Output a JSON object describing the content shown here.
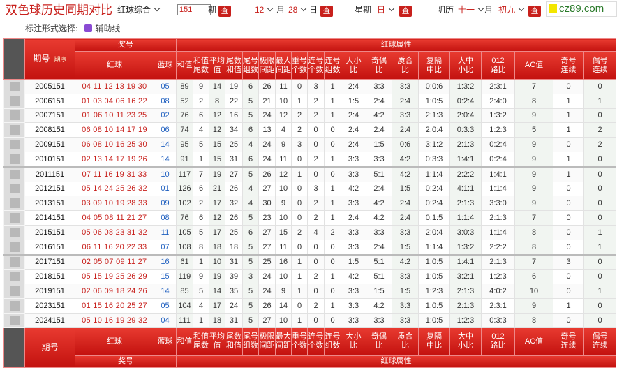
{
  "header": {
    "title": "双色球历史同期对比",
    "dropdown": "红球综合",
    "issue_input": "151",
    "issue_label": "期",
    "search_button": "查",
    "month": "12",
    "month_label": "月",
    "day": "28",
    "day_label": "日",
    "weekday_label": "星期",
    "weekday": "日",
    "lunar_label": "阴历",
    "lunar_month": "十一",
    "lunar_month_label": "月",
    "lunar_day": "初九",
    "logo": "cz89.com"
  },
  "options": {
    "label": "标注形式选择:",
    "checkbox": "辅助线"
  },
  "table": {
    "issue_header": "期号",
    "sort_label": "期序",
    "prize_header": "奖号",
    "attribute_header": "红球属性",
    "prize_columns": [
      "红球",
      "蓝球"
    ],
    "attribute_columns": [
      "和值",
      "和值尾数",
      "平均值",
      "尾数和值",
      "尾号组数",
      "极限间距",
      "最大间距",
      "重号个数",
      "连号个数",
      "连号组数",
      "大小比",
      "奇偶比",
      "质合比",
      "复隔中比",
      "大中小比",
      "012路比",
      "AC值",
      "奇号连续",
      "偶号连续"
    ],
    "rows": [
      [
        "2005151",
        "04 11 12 13 19 30",
        "05",
        89,
        9,
        14,
        19,
        6,
        26,
        11,
        0,
        3,
        1,
        "2:4",
        "3:3",
        "3:3",
        "0:0:6",
        "1:3:2",
        "2:3:1",
        7,
        0,
        0
      ],
      [
        "2006151",
        "01 03 04 06 16 22",
        "08",
        52,
        2,
        8,
        22,
        5,
        21,
        10,
        1,
        2,
        1,
        "1:5",
        "2:4",
        "2:4",
        "1:0:5",
        "0:2:4",
        "2:4:0",
        8,
        1,
        1
      ],
      [
        "2007151",
        "01 06 10 11 23 25",
        "02",
        76,
        6,
        12,
        16,
        5,
        24,
        12,
        2,
        2,
        1,
        "2:4",
        "4:2",
        "3:3",
        "2:1:3",
        "2:0:4",
        "1:3:2",
        9,
        1,
        0
      ],
      [
        "2008151",
        "06 08 10 14 17 19",
        "06",
        74,
        4,
        12,
        34,
        6,
        13,
        4,
        2,
        0,
        0,
        "2:4",
        "2:4",
        "2:4",
        "2:0:4",
        "0:3:3",
        "1:2:3",
        5,
        1,
        2
      ],
      [
        "2009151",
        "06 08 10 16 25 30",
        "14",
        95,
        5,
        15,
        25,
        4,
        24,
        9,
        3,
        0,
        0,
        "2:4",
        "1:5",
        "0:6",
        "3:1:2",
        "2:1:3",
        "0:2:4",
        9,
        0,
        2
      ],
      [
        "2010151",
        "02 13 14 17 19 26",
        "14",
        91,
        1,
        15,
        31,
        6,
        24,
        11,
        0,
        2,
        1,
        "3:3",
        "3:3",
        "4:2",
        "0:3:3",
        "1:4:1",
        "0:2:4",
        9,
        1,
        0
      ],
      [
        "2011151",
        "07 11 16 19 31 33",
        "10",
        117,
        7,
        19,
        27,
        5,
        26,
        12,
        1,
        0,
        0,
        "3:3",
        "5:1",
        "4:2",
        "1:1:4",
        "2:2:2",
        "1:4:1",
        9,
        1,
        0
      ],
      [
        "2012151",
        "05 14 24 25 26 32",
        "01",
        126,
        6,
        21,
        26,
        4,
        27,
        10,
        0,
        3,
        1,
        "4:2",
        "2:4",
        "1:5",
        "0:2:4",
        "4:1:1",
        "1:1:4",
        9,
        0,
        0
      ],
      [
        "2013151",
        "03 09 10 19 28 33",
        "09",
        102,
        2,
        17,
        32,
        4,
        30,
        9,
        0,
        2,
        1,
        "3:3",
        "4:2",
        "2:4",
        "0:2:4",
        "2:1:3",
        "3:3:0",
        9,
        0,
        0
      ],
      [
        "2014151",
        "04 05 08 11 21 27",
        "08",
        76,
        6,
        12,
        26,
        5,
        23,
        10,
        0,
        2,
        1,
        "2:4",
        "4:2",
        "2:4",
        "0:1:5",
        "1:1:4",
        "2:1:3",
        7,
        0,
        0
      ],
      [
        "2015151",
        "05 06 08 23 31 32",
        "11",
        105,
        5,
        17,
        25,
        6,
        27,
        15,
        2,
        4,
        2,
        "3:3",
        "3:3",
        "3:3",
        "2:0:4",
        "3:0:3",
        "1:1:4",
        8,
        0,
        1
      ],
      [
        "2016151",
        "06 11 16 20 22 33",
        "07",
        108,
        8,
        18,
        18,
        5,
        27,
        11,
        0,
        0,
        0,
        "3:3",
        "2:4",
        "1:5",
        "1:1:4",
        "1:3:2",
        "2:2:2",
        8,
        0,
        1
      ],
      [
        "2017151",
        "02 05 07 09 11 27",
        "16",
        61,
        1,
        10,
        31,
        5,
        25,
        16,
        1,
        0,
        0,
        "1:5",
        "5:1",
        "4:2",
        "1:0:5",
        "1:4:1",
        "2:1:3",
        7,
        3,
        0
      ],
      [
        "2018151",
        "05 15 19 25 26 29",
        "15",
        119,
        9,
        19,
        39,
        3,
        24,
        10,
        1,
        2,
        1,
        "4:2",
        "5:1",
        "3:3",
        "1:0:5",
        "3:2:1",
        "1:2:3",
        6,
        0,
        0
      ],
      [
        "2019151",
        "02 06 09 18 24 26",
        "14",
        85,
        5,
        14,
        35,
        5,
        24,
        9,
        1,
        0,
        0,
        "3:3",
        "1:5",
        "1:5",
        "1:2:3",
        "2:1:3",
        "4:0:2",
        10,
        0,
        1
      ],
      [
        "2023151",
        "01 15 16 20 25 27",
        "05",
        104,
        4,
        17,
        24,
        5,
        26,
        14,
        0,
        2,
        1,
        "3:3",
        "4:2",
        "3:3",
        "1:0:5",
        "2:1:3",
        "2:3:1",
        9,
        1,
        0
      ],
      [
        "2024151",
        "05 10 16 19 29 32",
        "04",
        111,
        1,
        18,
        31,
        5,
        27,
        10,
        1,
        0,
        0,
        "3:3",
        "3:3",
        "3:3",
        "1:0:5",
        "1:2:3",
        "0:3:3",
        8,
        0,
        0
      ]
    ]
  }
}
